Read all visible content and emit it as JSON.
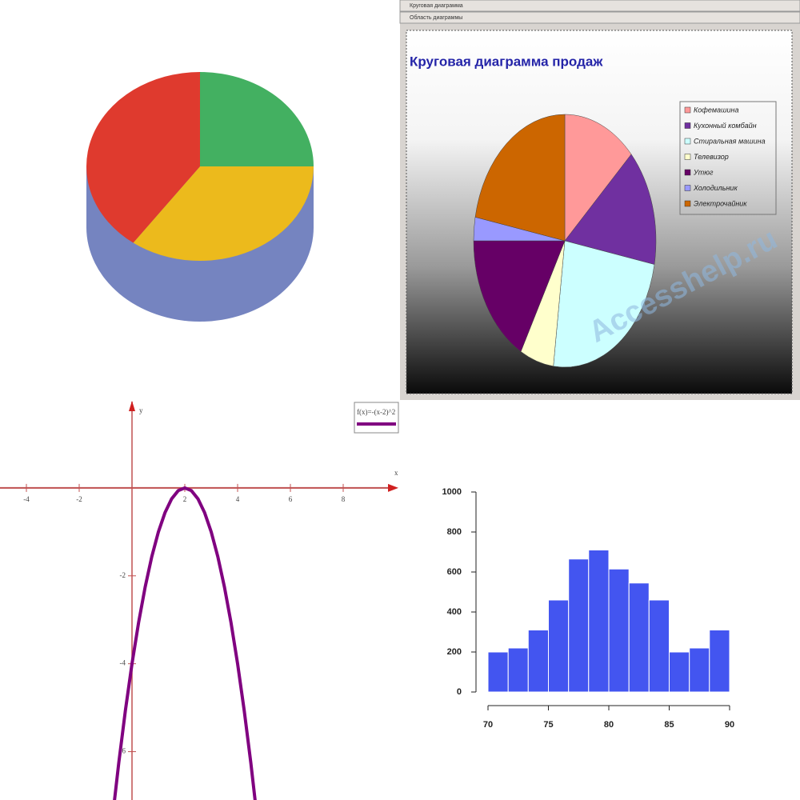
{
  "window": {
    "title": "Круговая диаграмма",
    "selection": "Область диаграммы"
  },
  "chart_data": [
    {
      "type": "pie",
      "three_d": true,
      "values": [
        25,
        35,
        40
      ],
      "colors": [
        "#43b061",
        "#ecba1c",
        "#df3a2e"
      ],
      "side_color": "#7584c0"
    },
    {
      "type": "pie",
      "title": "Круговая диаграмма продаж",
      "annotation": "Accesshelp.ru",
      "categories": [
        "Кофемашина",
        "Кухонный комбайн",
        "Стиральная машина",
        "Телевизор",
        "Утюг",
        "Холодильник",
        "Электрочайник"
      ],
      "values": [
        13,
        15,
        24,
        6,
        17,
        3,
        22
      ],
      "colors": [
        "#ff9999",
        "#7030a0",
        "#ccffff",
        "#ffffcc",
        "#660066",
        "#9999ff",
        "#cc6600"
      ]
    },
    {
      "type": "line",
      "xlabel": "x",
      "ylabel": "y",
      "x": [
        -0.75,
        -0.5,
        -0.25,
        0,
        0.25,
        0.5,
        0.75,
        1,
        1.25,
        1.5,
        1.75,
        2,
        2.25,
        2.5,
        2.75,
        3,
        3.25,
        3.5,
        3.75,
        4,
        4.25,
        4.5,
        4.75
      ],
      "series": [
        {
          "name": "f(x)=-(x-2)^2",
          "color": "#800080",
          "values": [
            -7.5625,
            -6.25,
            -5.0625,
            -4,
            -3.0625,
            -2.25,
            -1.5625,
            -1,
            -0.5625,
            -0.25,
            -0.0625,
            0,
            -0.0625,
            -0.25,
            -0.5625,
            -1,
            -1.5625,
            -2.25,
            -3.0625,
            -4,
            -5.0625,
            -6.25,
            -7.5625
          ]
        }
      ],
      "xlim": [
        -5,
        10
      ],
      "ylim": [
        -7.1,
        2
      ],
      "xticks": [
        -4,
        -2,
        2,
        4,
        6,
        8
      ],
      "yticks": [
        -2,
        -4,
        -6
      ]
    },
    {
      "type": "histogram",
      "color": "#4355f0",
      "bins": [
        70,
        71.67,
        73.33,
        75,
        76.67,
        78.33,
        80,
        81.67,
        83.33,
        85,
        86.67,
        88.33,
        90
      ],
      "values": [
        200,
        220,
        310,
        460,
        665,
        710,
        615,
        545,
        460,
        200,
        220,
        310
      ],
      "xlim": [
        70,
        90
      ],
      "ylim": [
        0,
        1000
      ],
      "xticks": [
        70,
        75,
        80,
        85,
        90
      ],
      "yticks": [
        0,
        200,
        400,
        600,
        800,
        1000
      ]
    }
  ]
}
